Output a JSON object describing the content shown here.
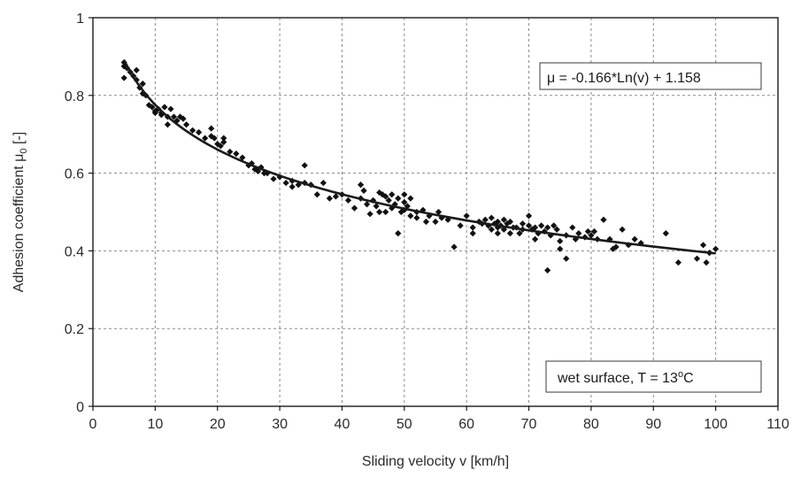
{
  "chart_data": {
    "type": "scatter",
    "title": "",
    "xlabel": "Sliding velocity v [km/h]",
    "ylabel_main": "Adhesion coefficient μ",
    "ylabel_sub": "0",
    "ylabel_unit": " [-]",
    "xlim": [
      0,
      110
    ],
    "ylim": [
      0,
      1
    ],
    "xticks": [
      "0",
      "10",
      "20",
      "30",
      "40",
      "50",
      "60",
      "70",
      "80",
      "90",
      "100",
      "110"
    ],
    "yticks": [
      "0",
      "0.2",
      "0.4",
      "0.6",
      "0.8",
      "1"
    ],
    "grid": true,
    "marker": "diamond",
    "colors": {
      "points": "#111111",
      "fit": "#1a1a1a",
      "grid": "#8a8a8a"
    },
    "fit": {
      "label": "μ = -0.166*Ln(v) + 1.158",
      "a": -0.166,
      "b": 1.158,
      "x_range": [
        5,
        100
      ]
    },
    "annotation": {
      "prefix": "wet surface, T = 13",
      "sup": "o",
      "suffix": "C"
    },
    "series": [
      {
        "points": [
          [
            5,
            0.885
          ],
          [
            5,
            0.875
          ],
          [
            5,
            0.845
          ],
          [
            5.5,
            0.87
          ],
          [
            6,
            0.86
          ],
          [
            6.5,
            0.85
          ],
          [
            7,
            0.865
          ],
          [
            7,
            0.84
          ],
          [
            7.5,
            0.82
          ],
          [
            8,
            0.83
          ],
          [
            8,
            0.805
          ],
          [
            8.5,
            0.8
          ],
          [
            9,
            0.775
          ],
          [
            9.5,
            0.77
          ],
          [
            10,
            0.76
          ],
          [
            10,
            0.755
          ],
          [
            10.5,
            0.765
          ],
          [
            11,
            0.755
          ],
          [
            11,
            0.75
          ],
          [
            11.5,
            0.77
          ],
          [
            12,
            0.745
          ],
          [
            12,
            0.725
          ],
          [
            12.5,
            0.765
          ],
          [
            13,
            0.745
          ],
          [
            13.5,
            0.735
          ],
          [
            14,
            0.745
          ],
          [
            14.5,
            0.74
          ],
          [
            15,
            0.725
          ],
          [
            16,
            0.71
          ],
          [
            17,
            0.705
          ],
          [
            18,
            0.69
          ],
          [
            19,
            0.715
          ],
          [
            19,
            0.695
          ],
          [
            19.5,
            0.69
          ],
          [
            20,
            0.675
          ],
          [
            20.5,
            0.67
          ],
          [
            21,
            0.68
          ],
          [
            21,
            0.69
          ],
          [
            22,
            0.655
          ],
          [
            23,
            0.65
          ],
          [
            24,
            0.64
          ],
          [
            25,
            0.62
          ],
          [
            25.5,
            0.625
          ],
          [
            26,
            0.61
          ],
          [
            26.5,
            0.605
          ],
          [
            27,
            0.615
          ],
          [
            27.5,
            0.6
          ],
          [
            28,
            0.6
          ],
          [
            29,
            0.585
          ],
          [
            30,
            0.59
          ],
          [
            31,
            0.575
          ],
          [
            32,
            0.58
          ],
          [
            32,
            0.565
          ],
          [
            33,
            0.57
          ],
          [
            34,
            0.62
          ],
          [
            34,
            0.575
          ],
          [
            35,
            0.57
          ],
          [
            36,
            0.545
          ],
          [
            37,
            0.575
          ],
          [
            38,
            0.535
          ],
          [
            39,
            0.54
          ],
          [
            40,
            0.545
          ],
          [
            41,
            0.53
          ],
          [
            42,
            0.51
          ],
          [
            43,
            0.57
          ],
          [
            43,
            0.535
          ],
          [
            43.5,
            0.555
          ],
          [
            44,
            0.52
          ],
          [
            44.5,
            0.495
          ],
          [
            45,
            0.53
          ],
          [
            45.5,
            0.515
          ],
          [
            46,
            0.55
          ],
          [
            46,
            0.5
          ],
          [
            46.5,
            0.545
          ],
          [
            47,
            0.54
          ],
          [
            47,
            0.5
          ],
          [
            47.5,
            0.53
          ],
          [
            48,
            0.545
          ],
          [
            48,
            0.51
          ],
          [
            48.5,
            0.52
          ],
          [
            49,
            0.535
          ],
          [
            49,
            0.445
          ],
          [
            49.5,
            0.5
          ],
          [
            50,
            0.545
          ],
          [
            50,
            0.525
          ],
          [
            50,
            0.505
          ],
          [
            50.5,
            0.515
          ],
          [
            51,
            0.535
          ],
          [
            51,
            0.49
          ],
          [
            52,
            0.5
          ],
          [
            52,
            0.485
          ],
          [
            53,
            0.505
          ],
          [
            53.5,
            0.475
          ],
          [
            54,
            0.49
          ],
          [
            55,
            0.475
          ],
          [
            55.5,
            0.5
          ],
          [
            56,
            0.485
          ],
          [
            57,
            0.48
          ],
          [
            58,
            0.41
          ],
          [
            59,
            0.465
          ],
          [
            60,
            0.49
          ],
          [
            61,
            0.46
          ],
          [
            61,
            0.445
          ],
          [
            62,
            0.475
          ],
          [
            62.5,
            0.47
          ],
          [
            63,
            0.48
          ],
          [
            63.5,
            0.465
          ],
          [
            64,
            0.485
          ],
          [
            64,
            0.455
          ],
          [
            64.5,
            0.47
          ],
          [
            65,
            0.475
          ],
          [
            65,
            0.46
          ],
          [
            65,
            0.445
          ],
          [
            65.5,
            0.465
          ],
          [
            66,
            0.48
          ],
          [
            66,
            0.455
          ],
          [
            66.5,
            0.47
          ],
          [
            67,
            0.475
          ],
          [
            67,
            0.445
          ],
          [
            67.5,
            0.46
          ],
          [
            68,
            0.46
          ],
          [
            68.5,
            0.445
          ],
          [
            69,
            0.47
          ],
          [
            69,
            0.455
          ],
          [
            70,
            0.49
          ],
          [
            70,
            0.465
          ],
          [
            70.5,
            0.455
          ],
          [
            71,
            0.46
          ],
          [
            71,
            0.43
          ],
          [
            71.5,
            0.445
          ],
          [
            72,
            0.465
          ],
          [
            72.5,
            0.45
          ],
          [
            73,
            0.46
          ],
          [
            73,
            0.35
          ],
          [
            73.5,
            0.44
          ],
          [
            74,
            0.465
          ],
          [
            74.5,
            0.455
          ],
          [
            75,
            0.425
          ],
          [
            75,
            0.405
          ],
          [
            76,
            0.44
          ],
          [
            76,
            0.38
          ],
          [
            77,
            0.46
          ],
          [
            77.5,
            0.43
          ],
          [
            78,
            0.445
          ],
          [
            79,
            0.435
          ],
          [
            79.5,
            0.45
          ],
          [
            80,
            0.44
          ],
          [
            80.5,
            0.45
          ],
          [
            81,
            0.43
          ],
          [
            82,
            0.48
          ],
          [
            83,
            0.43
          ],
          [
            83.5,
            0.405
          ],
          [
            84,
            0.41
          ],
          [
            85,
            0.455
          ],
          [
            86,
            0.415
          ],
          [
            87,
            0.43
          ],
          [
            88,
            0.42
          ],
          [
            92,
            0.445
          ],
          [
            94,
            0.37
          ],
          [
            97,
            0.38
          ],
          [
            98,
            0.415
          ],
          [
            98.5,
            0.37
          ],
          [
            99,
            0.395
          ],
          [
            100,
            0.405
          ]
        ]
      }
    ]
  }
}
